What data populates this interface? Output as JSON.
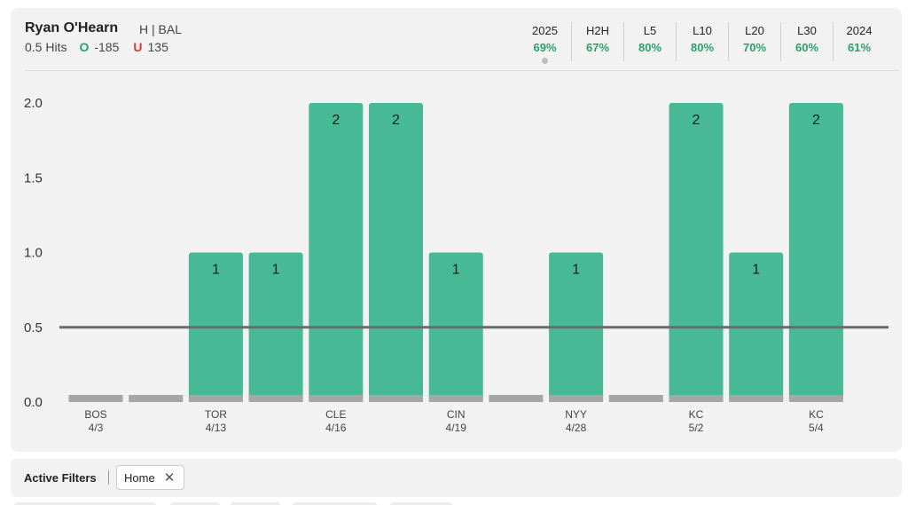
{
  "player": {
    "name": "Ryan O'Hearn",
    "meta": "H | BAL",
    "line": "0.5 Hits",
    "over_icon": "O",
    "over_odds": "-185",
    "under_icon": "U",
    "under_odds": "135"
  },
  "stats": [
    {
      "label": "2025",
      "value": "69%"
    },
    {
      "label": "H2H",
      "value": "67%"
    },
    {
      "label": "L5",
      "value": "80%"
    },
    {
      "label": "L10",
      "value": "80%"
    },
    {
      "label": "L20",
      "value": "70%"
    },
    {
      "label": "L30",
      "value": "60%"
    },
    {
      "label": "2024",
      "value": "61%"
    }
  ],
  "filters": {
    "label": "Active Filters",
    "chip_label": "Home",
    "chip_close": "✕"
  },
  "colors": {
    "bar": "#47b994",
    "baseline": "#a6a6a6",
    "threshold": "#6b6b6b",
    "accent_green": "#2e9e6b",
    "under_red": "#d43c3c"
  },
  "chart_data": {
    "type": "bar",
    "categories": [
      "BOS 4/3",
      "",
      "TOR 4/13",
      "",
      "CLE 4/16",
      "",
      "CIN 4/19",
      "",
      "NYY 4/28",
      "",
      "KC 5/2",
      "",
      "KC 5/4"
    ],
    "x_labels": [
      {
        "team": "BOS",
        "date": "4/3"
      },
      {
        "team": "",
        "date": ""
      },
      {
        "team": "TOR",
        "date": "4/13"
      },
      {
        "team": "",
        "date": ""
      },
      {
        "team": "CLE",
        "date": "4/16"
      },
      {
        "team": "",
        "date": ""
      },
      {
        "team": "CIN",
        "date": "4/19"
      },
      {
        "team": "",
        "date": ""
      },
      {
        "team": "NYY",
        "date": "4/28"
      },
      {
        "team": "",
        "date": ""
      },
      {
        "team": "KC",
        "date": "5/2"
      },
      {
        "team": "",
        "date": ""
      },
      {
        "team": "KC",
        "date": "5/4"
      }
    ],
    "values": [
      0,
      0,
      1,
      1,
      2,
      2,
      1,
      0,
      1,
      0,
      2,
      1,
      2
    ],
    "threshold": 0.5,
    "ylim": [
      0,
      2
    ],
    "yticks": [
      "0.0",
      "0.5",
      "1.0",
      "1.5",
      "2.0"
    ],
    "ytick_values": [
      0,
      0.5,
      1,
      1.5,
      2
    ],
    "grid": false,
    "legend": "none"
  }
}
